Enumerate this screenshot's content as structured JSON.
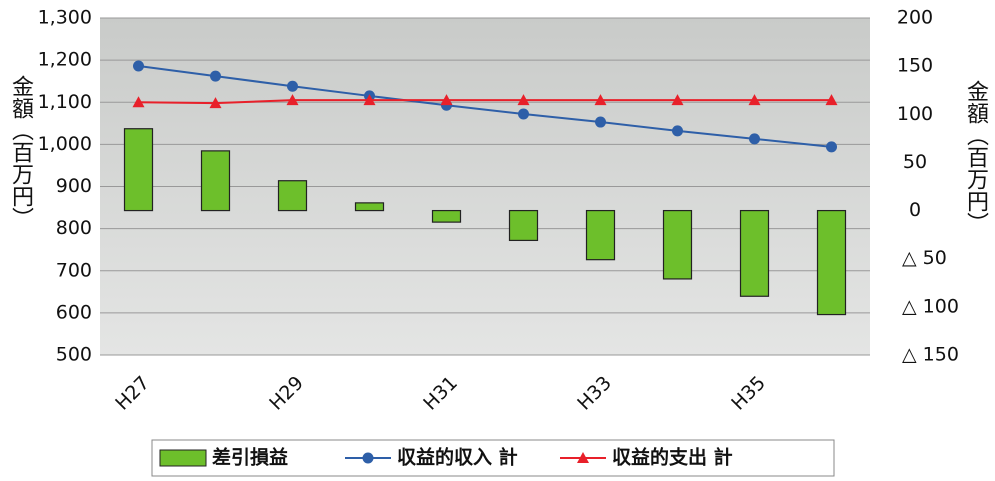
{
  "chart_data": {
    "type": "combo",
    "y_label": "金額（百万円）",
    "y2_label": "金額（百万円）",
    "categories": [
      "H27",
      null,
      "H29",
      null,
      "H31",
      null,
      "H33",
      null,
      "H35",
      null
    ],
    "series": [
      {
        "name": "差引損益",
        "type": "bar",
        "axis": "y2",
        "color": "#6dbf2b",
        "values": [
          85,
          62,
          31,
          8,
          -12,
          -31,
          -51,
          -71,
          -89,
          -108
        ]
      },
      {
        "name": "収益的収入 計",
        "type": "line",
        "color": "#2e5fa8",
        "values": [
          1186,
          1162,
          1138,
          1115,
          1093,
          1072,
          1053,
          1032,
          1013,
          994
        ]
      },
      {
        "name": "収益的支出 計",
        "type": "line",
        "color": "#e8202a",
        "values": [
          1100,
          1098,
          1105,
          1105,
          1105,
          1105,
          1105,
          1105,
          1105,
          1105
        ]
      }
    ],
    "ylim": [
      500,
      1300
    ],
    "yticks": [
      {
        "value": 500,
        "label": "500"
      },
      {
        "value": 600,
        "label": "600"
      },
      {
        "value": 700,
        "label": "700"
      },
      {
        "value": 800,
        "label": "800"
      },
      {
        "value": 900,
        "label": "900"
      },
      {
        "value": 1000,
        "label": "1,000"
      },
      {
        "value": 1100,
        "label": "1,100"
      },
      {
        "value": 1200,
        "label": "1,200"
      },
      {
        "value": 1300,
        "label": "1,300"
      }
    ],
    "y2lim": [
      -150,
      200
    ],
    "y2ticks": [
      {
        "value": -150,
        "label": "△ 150"
      },
      {
        "value": -100,
        "label": "△ 100"
      },
      {
        "value": -50,
        "label": "△ 50"
      },
      0,
      50,
      100,
      150,
      200
    ],
    "grid": true
  }
}
